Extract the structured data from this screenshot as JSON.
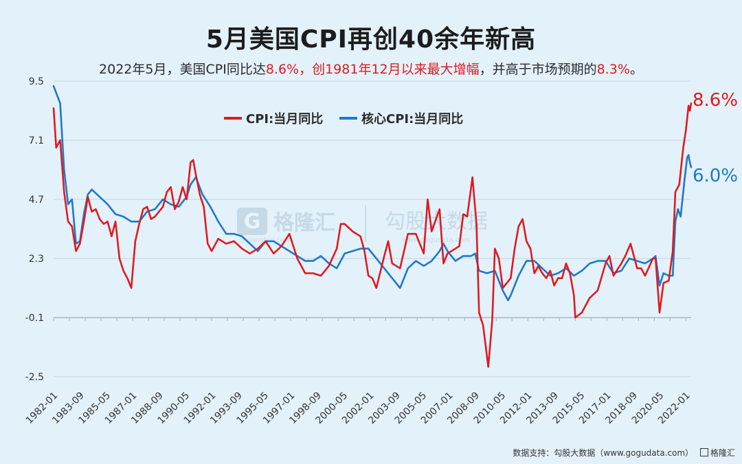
{
  "header": {
    "title": "5月美国CPI再创40余年新高",
    "subtitle_parts": [
      {
        "text": "2022年5月，美国CPI同比达",
        "highlight": false
      },
      {
        "text": "8.6%，创1981年12月以来最大增幅",
        "highlight": true
      },
      {
        "text": "，并高于市场预期的",
        "highlight": false
      },
      {
        "text": "8.3%",
        "highlight": true
      },
      {
        "text": "。",
        "highlight": false
      }
    ]
  },
  "footer": {
    "source": "数据支持：勾股大数据（www.gogudata.com）",
    "brand": "格隆汇"
  },
  "watermark": {
    "brand": "格隆汇",
    "brand_url": "gelonghui.com",
    "partner": "勾股大数据",
    "partner_url": "www.gogudata.com"
  },
  "chart_data": {
    "type": "line",
    "title": "5月美国CPI再创40余年新高",
    "xlabel": "",
    "ylabel": "",
    "ylim": [
      -2.5,
      9.5
    ],
    "yticks": [
      9.5,
      7.1,
      4.7,
      2.3,
      -0.1,
      -2.5
    ],
    "ytick_labels": [
      "9.5",
      "7.1",
      "4.7",
      "2.3",
      "-0.1",
      "-2.5"
    ],
    "xlim": [
      "1982-01",
      "2022-05"
    ],
    "xticks": [
      "1982-01",
      "1983-09",
      "1985-05",
      "1987-01",
      "1988-09",
      "1990-05",
      "1992-01",
      "1993-09",
      "1995-05",
      "1997-01",
      "1998-09",
      "2000-05",
      "2002-01",
      "2003-09",
      "2005-05",
      "2007-01",
      "2008-09",
      "2010-05",
      "2012-01",
      "2013-09",
      "2015-05",
      "2017-01",
      "2018-09",
      "2020-05",
      "2022-01"
    ],
    "grid": "horizontal",
    "legend_position": "top-left",
    "colors": {
      "cpi": "#e0191f",
      "core": "#1f78c8"
    },
    "series": [
      {
        "name": "CPI:当月同比",
        "key": "cpi",
        "end_label": "8.6%",
        "points": [
          [
            "1982-01",
            8.4
          ],
          [
            "1982-03",
            6.8
          ],
          [
            "1982-06",
            7.1
          ],
          [
            "1982-09",
            5.0
          ],
          [
            "1982-12",
            3.8
          ],
          [
            "1983-03",
            3.6
          ],
          [
            "1983-06",
            2.6
          ],
          [
            "1983-09",
            2.9
          ],
          [
            "1983-12",
            3.8
          ],
          [
            "1984-03",
            4.8
          ],
          [
            "1984-06",
            4.2
          ],
          [
            "1984-09",
            4.3
          ],
          [
            "1984-12",
            3.9
          ],
          [
            "1985-03",
            3.7
          ],
          [
            "1985-06",
            3.8
          ],
          [
            "1985-09",
            3.2
          ],
          [
            "1985-12",
            3.8
          ],
          [
            "1986-03",
            2.3
          ],
          [
            "1986-06",
            1.8
          ],
          [
            "1986-09",
            1.5
          ],
          [
            "1986-12",
            1.1
          ],
          [
            "1987-03",
            3.0
          ],
          [
            "1987-06",
            3.7
          ],
          [
            "1987-09",
            4.3
          ],
          [
            "1987-12",
            4.4
          ],
          [
            "1988-03",
            3.9
          ],
          [
            "1988-06",
            4.0
          ],
          [
            "1988-09",
            4.2
          ],
          [
            "1988-12",
            4.4
          ],
          [
            "1989-03",
            5.0
          ],
          [
            "1989-06",
            5.2
          ],
          [
            "1989-09",
            4.3
          ],
          [
            "1989-12",
            4.6
          ],
          [
            "1990-03",
            5.2
          ],
          [
            "1990-06",
            4.7
          ],
          [
            "1990-09",
            6.2
          ],
          [
            "1990-11",
            6.3
          ],
          [
            "1991-01",
            5.7
          ],
          [
            "1991-04",
            4.9
          ],
          [
            "1991-07",
            4.4
          ],
          [
            "1991-10",
            2.9
          ],
          [
            "1992-01",
            2.6
          ],
          [
            "1992-06",
            3.1
          ],
          [
            "1992-12",
            2.9
          ],
          [
            "1993-06",
            3.0
          ],
          [
            "1993-12",
            2.7
          ],
          [
            "1994-06",
            2.5
          ],
          [
            "1994-12",
            2.7
          ],
          [
            "1995-06",
            3.0
          ],
          [
            "1995-12",
            2.5
          ],
          [
            "1996-06",
            2.8
          ],
          [
            "1996-12",
            3.3
          ],
          [
            "1997-06",
            2.3
          ],
          [
            "1997-12",
            1.7
          ],
          [
            "1998-06",
            1.7
          ],
          [
            "1998-12",
            1.6
          ],
          [
            "1999-06",
            2.0
          ],
          [
            "1999-12",
            2.7
          ],
          [
            "2000-03",
            3.7
          ],
          [
            "2000-06",
            3.7
          ],
          [
            "2000-12",
            3.4
          ],
          [
            "2001-06",
            3.2
          ],
          [
            "2001-09",
            2.6
          ],
          [
            "2001-12",
            1.6
          ],
          [
            "2002-03",
            1.5
          ],
          [
            "2002-06",
            1.1
          ],
          [
            "2002-12",
            2.4
          ],
          [
            "2003-03",
            3.0
          ],
          [
            "2003-06",
            2.1
          ],
          [
            "2003-12",
            1.9
          ],
          [
            "2004-06",
            3.3
          ],
          [
            "2004-12",
            3.3
          ],
          [
            "2005-06",
            2.5
          ],
          [
            "2005-09",
            4.7
          ],
          [
            "2005-12",
            3.4
          ],
          [
            "2006-06",
            4.3
          ],
          [
            "2006-09",
            2.1
          ],
          [
            "2006-12",
            2.5
          ],
          [
            "2007-06",
            2.7
          ],
          [
            "2007-09",
            2.8
          ],
          [
            "2007-12",
            4.1
          ],
          [
            "2008-03",
            4.0
          ],
          [
            "2008-07",
            5.6
          ],
          [
            "2008-10",
            3.7
          ],
          [
            "2008-12",
            0.1
          ],
          [
            "2009-03",
            -0.4
          ],
          [
            "2009-07",
            -2.1
          ],
          [
            "2009-10",
            -0.2
          ],
          [
            "2009-12",
            2.7
          ],
          [
            "2010-03",
            2.3
          ],
          [
            "2010-06",
            1.1
          ],
          [
            "2010-12",
            1.5
          ],
          [
            "2011-03",
            2.7
          ],
          [
            "2011-06",
            3.6
          ],
          [
            "2011-09",
            3.9
          ],
          [
            "2011-12",
            3.0
          ],
          [
            "2012-03",
            2.7
          ],
          [
            "2012-06",
            1.7
          ],
          [
            "2012-09",
            2.0
          ],
          [
            "2012-12",
            1.7
          ],
          [
            "2013-03",
            1.5
          ],
          [
            "2013-06",
            1.8
          ],
          [
            "2013-09",
            1.2
          ],
          [
            "2013-12",
            1.5
          ],
          [
            "2014-03",
            1.5
          ],
          [
            "2014-06",
            2.1
          ],
          [
            "2014-09",
            1.7
          ],
          [
            "2014-12",
            0.8
          ],
          [
            "2015-01",
            -0.1
          ],
          [
            "2015-06",
            0.1
          ],
          [
            "2015-12",
            0.7
          ],
          [
            "2016-06",
            1.0
          ],
          [
            "2016-12",
            2.1
          ],
          [
            "2017-03",
            2.4
          ],
          [
            "2017-06",
            1.6
          ],
          [
            "2017-12",
            2.1
          ],
          [
            "2018-03",
            2.4
          ],
          [
            "2018-07",
            2.9
          ],
          [
            "2018-12",
            1.9
          ],
          [
            "2019-03",
            1.9
          ],
          [
            "2019-06",
            1.6
          ],
          [
            "2019-12",
            2.3
          ],
          [
            "2020-02",
            2.3
          ],
          [
            "2020-05",
            0.1
          ],
          [
            "2020-08",
            1.3
          ],
          [
            "2020-12",
            1.4
          ],
          [
            "2021-03",
            2.6
          ],
          [
            "2021-05",
            5.0
          ],
          [
            "2021-08",
            5.3
          ],
          [
            "2021-11",
            6.8
          ],
          [
            "2022-01",
            7.5
          ],
          [
            "2022-03",
            8.5
          ],
          [
            "2022-04",
            8.3
          ],
          [
            "2022-05",
            8.6
          ]
        ]
      },
      {
        "name": "核心CPI:当月同比",
        "key": "core",
        "end_label": "6.0%",
        "points": [
          [
            "1982-01",
            9.3
          ],
          [
            "1982-06",
            8.6
          ],
          [
            "1982-09",
            5.9
          ],
          [
            "1982-12",
            4.5
          ],
          [
            "1983-03",
            4.7
          ],
          [
            "1983-06",
            2.9
          ],
          [
            "1983-09",
            3.0
          ],
          [
            "1983-12",
            4.1
          ],
          [
            "1984-03",
            4.9
          ],
          [
            "1984-06",
            5.1
          ],
          [
            "1984-12",
            4.8
          ],
          [
            "1985-06",
            4.5
          ],
          [
            "1985-12",
            4.1
          ],
          [
            "1986-06",
            4.0
          ],
          [
            "1986-12",
            3.8
          ],
          [
            "1987-06",
            3.8
          ],
          [
            "1987-12",
            4.2
          ],
          [
            "1988-06",
            4.3
          ],
          [
            "1988-12",
            4.7
          ],
          [
            "1989-06",
            4.5
          ],
          [
            "1989-12",
            4.4
          ],
          [
            "1990-06",
            4.8
          ],
          [
            "1990-09",
            5.3
          ],
          [
            "1991-01",
            5.6
          ],
          [
            "1991-06",
            4.9
          ],
          [
            "1991-12",
            4.4
          ],
          [
            "1992-06",
            3.8
          ],
          [
            "1992-12",
            3.3
          ],
          [
            "1993-06",
            3.3
          ],
          [
            "1993-12",
            3.2
          ],
          [
            "1994-06",
            2.9
          ],
          [
            "1994-12",
            2.6
          ],
          [
            "1995-06",
            3.0
          ],
          [
            "1995-12",
            3.0
          ],
          [
            "1996-06",
            2.8
          ],
          [
            "1996-12",
            2.6
          ],
          [
            "1997-06",
            2.4
          ],
          [
            "1997-12",
            2.2
          ],
          [
            "1998-06",
            2.2
          ],
          [
            "1998-12",
            2.4
          ],
          [
            "1999-06",
            2.1
          ],
          [
            "1999-12",
            1.9
          ],
          [
            "2000-06",
            2.5
          ],
          [
            "2000-12",
            2.6
          ],
          [
            "2001-06",
            2.7
          ],
          [
            "2001-12",
            2.7
          ],
          [
            "2002-06",
            2.3
          ],
          [
            "2002-12",
            1.9
          ],
          [
            "2003-06",
            1.5
          ],
          [
            "2003-12",
            1.1
          ],
          [
            "2004-06",
            1.9
          ],
          [
            "2004-12",
            2.2
          ],
          [
            "2005-06",
            2.0
          ],
          [
            "2005-12",
            2.2
          ],
          [
            "2006-06",
            2.6
          ],
          [
            "2006-09",
            2.9
          ],
          [
            "2006-12",
            2.6
          ],
          [
            "2007-06",
            2.2
          ],
          [
            "2007-12",
            2.4
          ],
          [
            "2008-06",
            2.4
          ],
          [
            "2008-09",
            2.5
          ],
          [
            "2008-12",
            1.8
          ],
          [
            "2009-06",
            1.7
          ],
          [
            "2009-12",
            1.8
          ],
          [
            "2010-06",
            1.0
          ],
          [
            "2010-10",
            0.6
          ],
          [
            "2010-12",
            0.8
          ],
          [
            "2011-06",
            1.6
          ],
          [
            "2011-12",
            2.2
          ],
          [
            "2012-06",
            2.2
          ],
          [
            "2012-12",
            1.9
          ],
          [
            "2013-06",
            1.6
          ],
          [
            "2013-12",
            1.7
          ],
          [
            "2014-06",
            1.9
          ],
          [
            "2014-12",
            1.6
          ],
          [
            "2015-06",
            1.8
          ],
          [
            "2015-12",
            2.1
          ],
          [
            "2016-06",
            2.2
          ],
          [
            "2016-12",
            2.2
          ],
          [
            "2017-06",
            1.7
          ],
          [
            "2017-12",
            1.8
          ],
          [
            "2018-06",
            2.3
          ],
          [
            "2018-12",
            2.2
          ],
          [
            "2019-06",
            2.1
          ],
          [
            "2019-12",
            2.3
          ],
          [
            "2020-02",
            2.4
          ],
          [
            "2020-05",
            1.2
          ],
          [
            "2020-08",
            1.7
          ],
          [
            "2020-12",
            1.6
          ],
          [
            "2021-03",
            1.6
          ],
          [
            "2021-05",
            3.8
          ],
          [
            "2021-07",
            4.3
          ],
          [
            "2021-09",
            4.0
          ],
          [
            "2021-12",
            5.5
          ],
          [
            "2022-02",
            6.4
          ],
          [
            "2022-03",
            6.5
          ],
          [
            "2022-04",
            6.2
          ],
          [
            "2022-05",
            6.0
          ]
        ]
      }
    ]
  }
}
